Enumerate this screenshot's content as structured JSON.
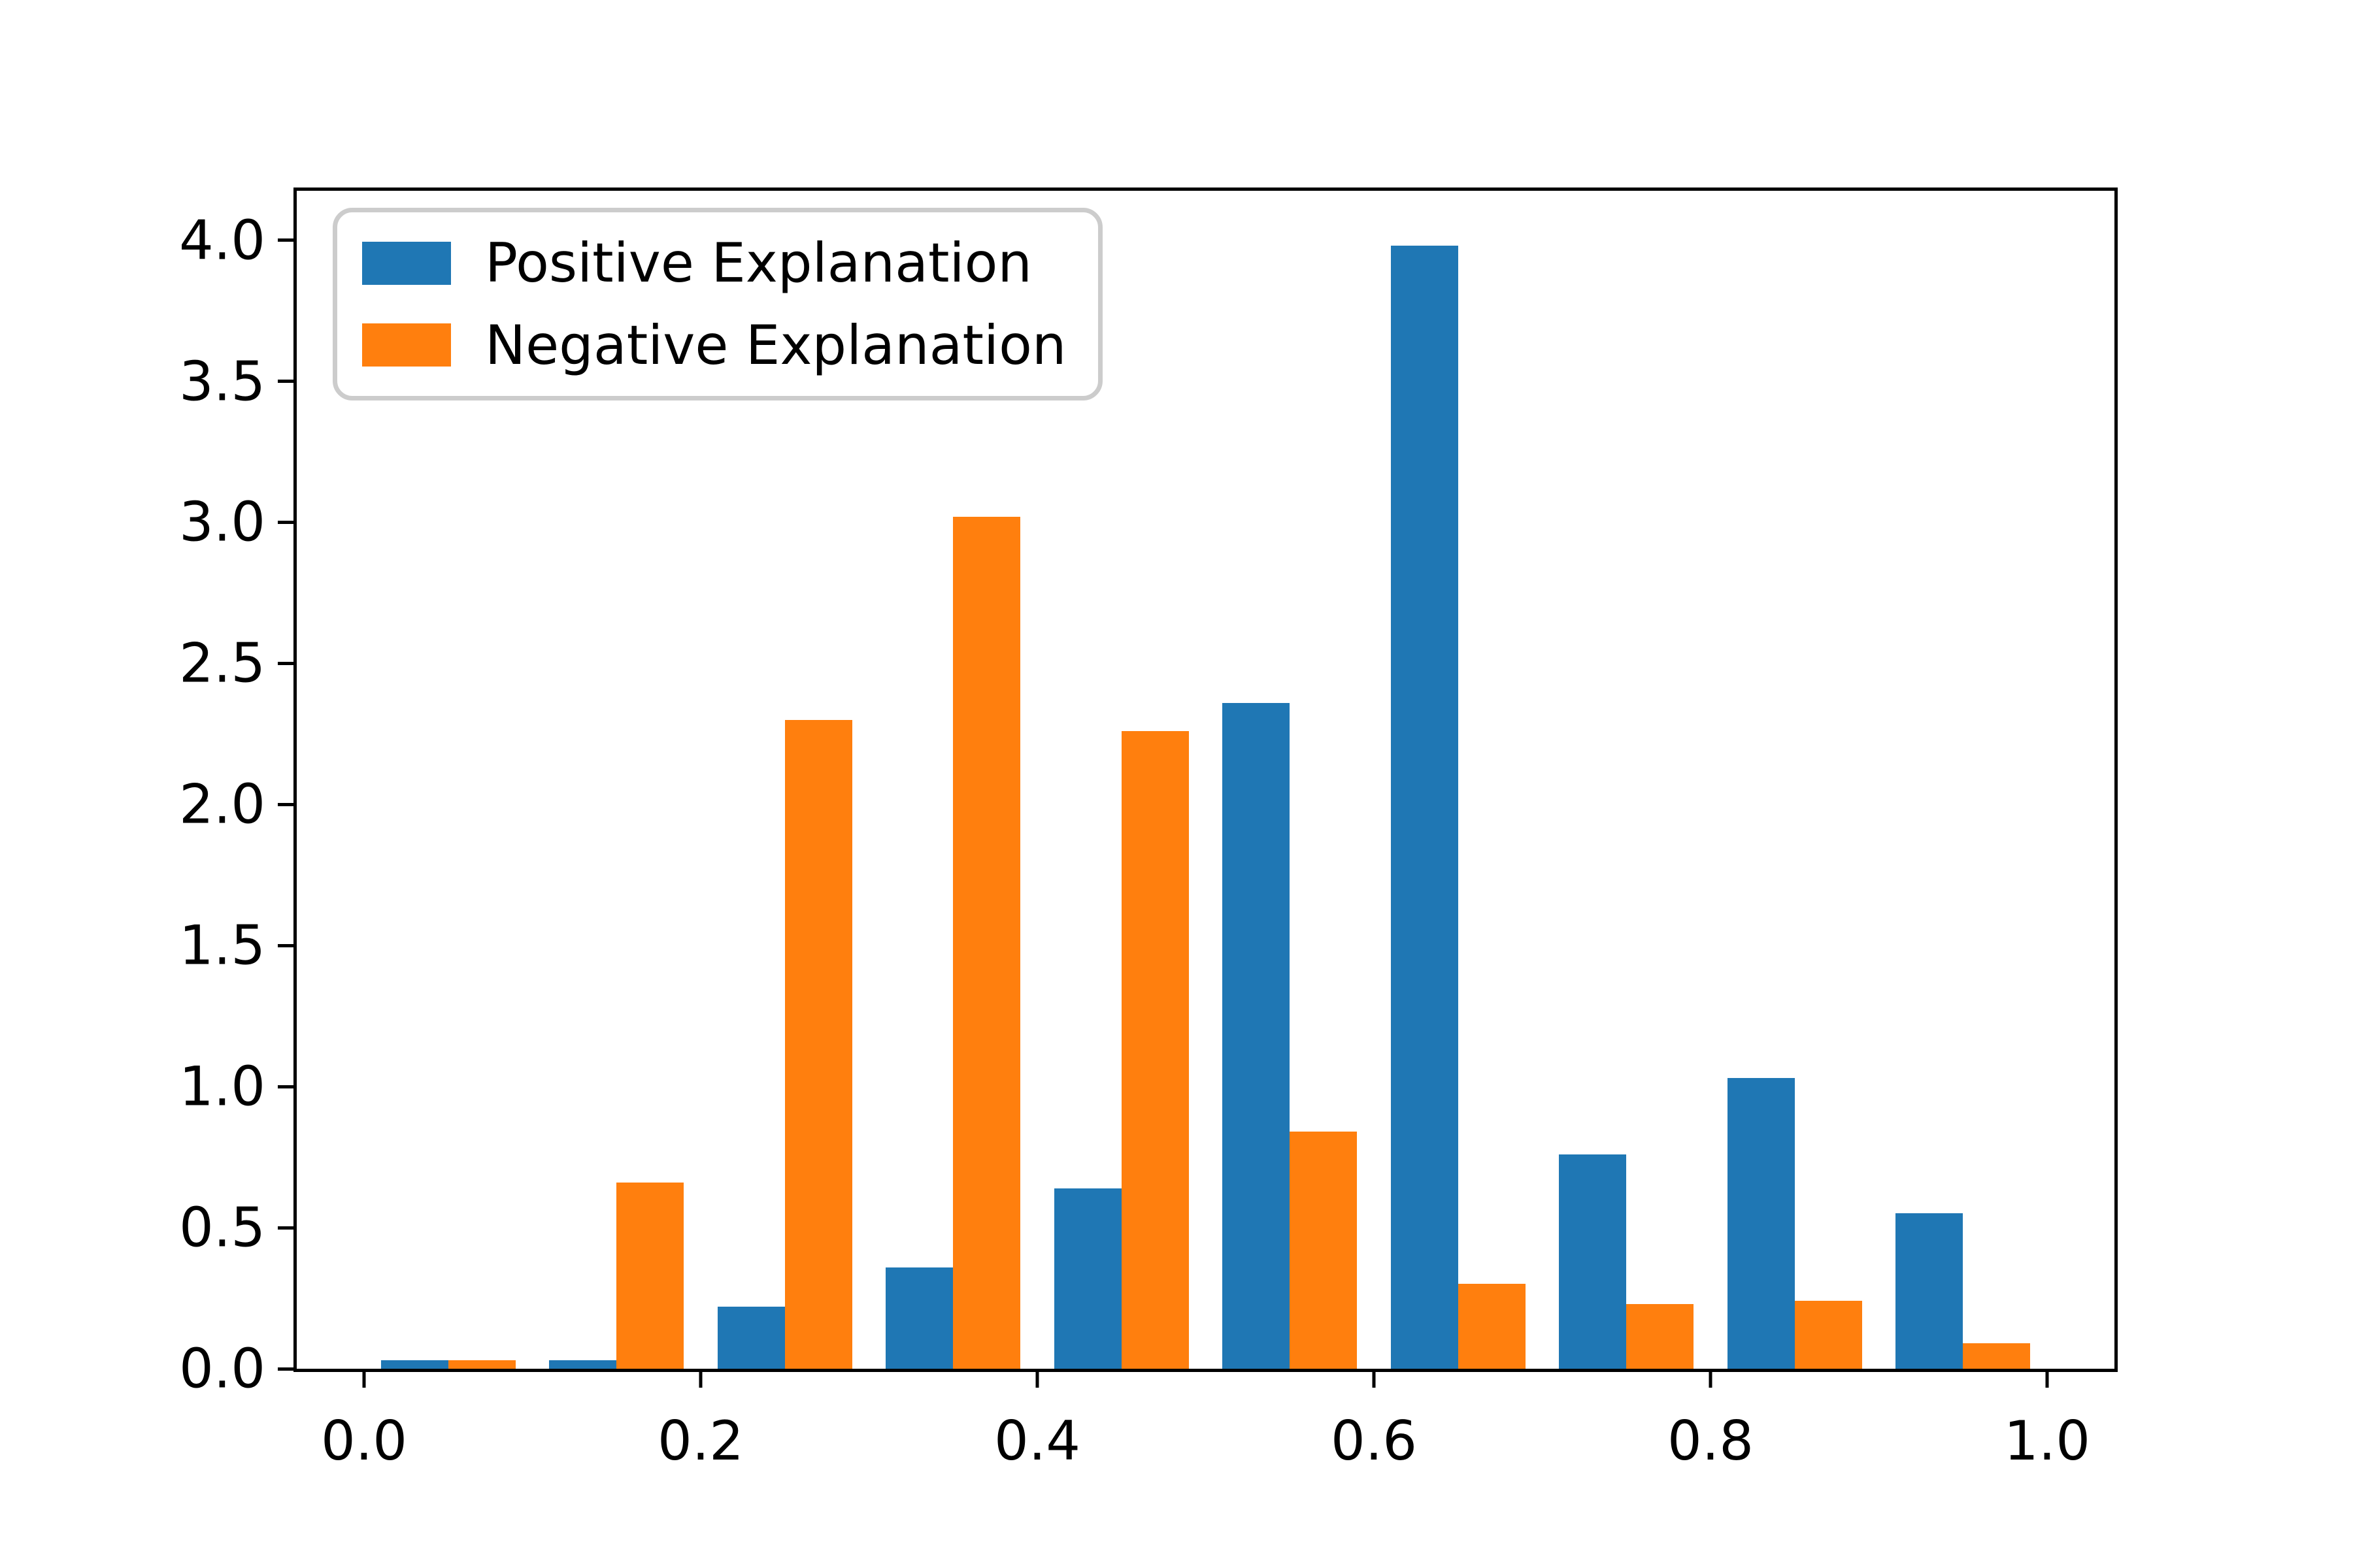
{
  "chart_data": {
    "type": "bar",
    "subtype": "histogram-density-pair",
    "title": "",
    "xlabel": "",
    "ylabel": "",
    "bin_edges": [
      0.0,
      0.1,
      0.2,
      0.3,
      0.4,
      0.5,
      0.6,
      0.7,
      0.8,
      0.9,
      1.0
    ],
    "bar_offsets": [
      0.01,
      0.05
    ],
    "bar_width": 0.04,
    "series": [
      {
        "name": "Positive Explanation",
        "color": "#1f77b4",
        "values": [
          0.03,
          0.03,
          0.22,
          0.36,
          0.64,
          2.36,
          3.98,
          0.76,
          1.03,
          0.55
        ]
      },
      {
        "name": "Negative Explanation",
        "color": "#ff7f0e",
        "values": [
          0.03,
          0.66,
          2.3,
          3.02,
          2.26,
          0.84,
          0.3,
          0.23,
          0.24,
          0.09
        ]
      }
    ],
    "xticks": [
      "0.0",
      "0.2",
      "0.4",
      "0.6",
      "0.8",
      "1.0"
    ],
    "xtick_values": [
      0.0,
      0.2,
      0.4,
      0.6,
      0.8,
      1.0
    ],
    "yticks": [
      "0.0",
      "0.5",
      "1.0",
      "1.5",
      "2.0",
      "2.5",
      "3.0",
      "3.5",
      "4.0"
    ],
    "ytick_values": [
      0.0,
      0.5,
      1.0,
      1.5,
      2.0,
      2.5,
      3.0,
      3.5,
      4.0
    ],
    "xlim": [
      -0.04,
      1.04
    ],
    "ylim": [
      0,
      4.175
    ],
    "grid": false,
    "legend_position": "upper left",
    "axis_color": "#000000",
    "legend_border_color": "#cccccc"
  }
}
